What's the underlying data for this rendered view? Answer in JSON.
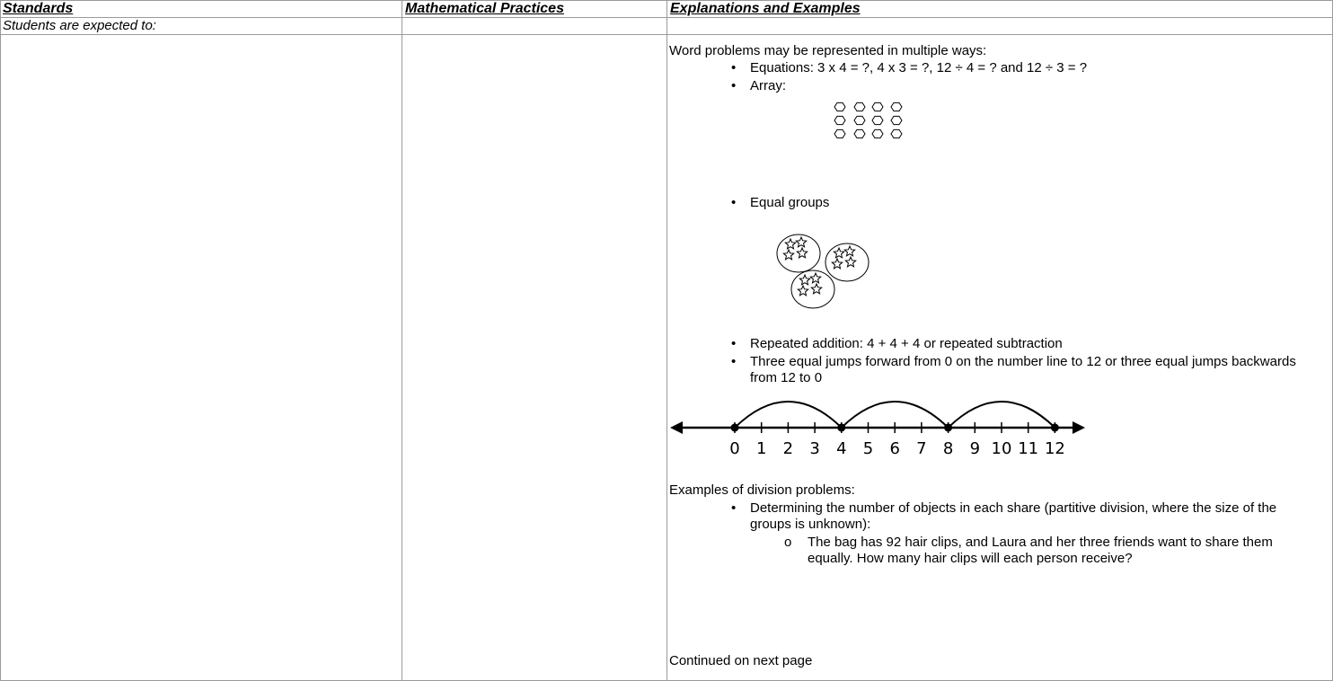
{
  "header": [
    "Standards",
    "Mathematical Practices",
    "Explanations and Examples"
  ],
  "intro": "Students are expected to:",
  "explanations": {
    "lead": "Word problems may be represented in multiple ways:",
    "items": [
      "Equations: 3 x 4 = ?, 4 x 3 = ?, 12 ÷ 4 = ? and 12 ÷ 3 = ?",
      "Array:",
      "Equal groups",
      "Repeated addition: 4 + 4 + 4  or repeated subtraction",
      "Three equal jumps forward from 0 on the number line to 12 or three equal jumps backwards from 12 to 0"
    ],
    "number_line_labels": [
      0,
      1,
      2,
      3,
      4,
      5,
      6,
      7,
      8,
      9,
      10,
      11,
      12
    ],
    "division_lead": "Examples of division problems:",
    "division_items": [
      {
        "text": "Determining the number of objects in each share (partitive division, where the size of the groups is unknown):",
        "sub": [
          "The bag has 92 hair clips, and Laura and her three friends want to share them equally. How many hair clips will each person receive?"
        ]
      }
    ],
    "footer": "Continued on next page"
  }
}
